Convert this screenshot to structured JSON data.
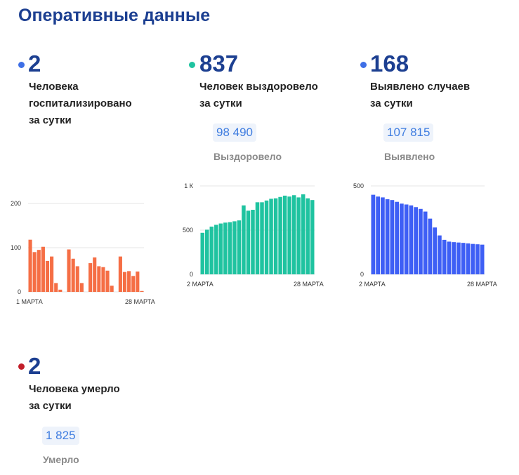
{
  "page": {
    "title": "Оперативные данные"
  },
  "stats": [
    {
      "id": "hosp",
      "value": "2",
      "label": "Человека\nгоспитализировано\nза сутки",
      "dot_color": "#3e6fe6",
      "chart_index": 0
    },
    {
      "id": "recov",
      "value": "837",
      "label": "Человек выздоровело\nза сутки",
      "dot_color": "#1fc3a0",
      "total": "98 490",
      "total_label": "Выздоровело",
      "chart_index": 1
    },
    {
      "id": "cases",
      "value": "168",
      "label": "Выявлено случаев\nза сутки",
      "dot_color": "#3e6fe6",
      "total": "107 815",
      "total_label": "Выявлено",
      "chart_index": 2
    },
    {
      "id": "death",
      "value": "2",
      "label": "Человека умерло\nза сутки",
      "dot_color": "#c21f2b",
      "total": "1 825",
      "total_label": "Умерло"
    }
  ],
  "chart_data": [
    {
      "type": "bar",
      "color": "#f56e45",
      "ylim": [
        0,
        200
      ],
      "yticks": [
        {
          "v": 0,
          "label": "0"
        },
        {
          "v": 100,
          "label": "100"
        },
        {
          "v": 200,
          "label": "200"
        }
      ],
      "xlabels": [
        "1 МАРТА",
        "28 МАРТА"
      ],
      "values": [
        118,
        90,
        95,
        102,
        70,
        80,
        20,
        5,
        0,
        96,
        75,
        58,
        20,
        0,
        65,
        78,
        58,
        56,
        48,
        14,
        0,
        80,
        45,
        47,
        36,
        46,
        2
      ]
    },
    {
      "type": "bar",
      "color": "#1fc3a0",
      "ylim": [
        0,
        1000
      ],
      "yticks": [
        {
          "v": 0,
          "label": "0"
        },
        {
          "v": 500,
          "label": "500"
        },
        {
          "v": 1000,
          "label": "1 К"
        }
      ],
      "xlabels": [
        "2 МАРТА",
        "28 МАРТА"
      ],
      "values": [
        470,
        505,
        540,
        560,
        575,
        585,
        590,
        600,
        610,
        780,
        720,
        730,
        815,
        815,
        835,
        855,
        860,
        875,
        890,
        880,
        895,
        870,
        905,
        860,
        840
      ]
    },
    {
      "type": "bar",
      "color": "#3e5ff5",
      "ylim": [
        0,
        500
      ],
      "yticks": [
        {
          "v": 0,
          "label": "0"
        },
        {
          "v": 500,
          "label": "500"
        }
      ],
      "xlabels": [
        "2 МАРТА",
        "28 МАРТА"
      ],
      "values": [
        450,
        440,
        435,
        425,
        420,
        410,
        400,
        395,
        390,
        380,
        370,
        355,
        315,
        265,
        220,
        195,
        185,
        182,
        180,
        178,
        175,
        172,
        170,
        168
      ]
    }
  ]
}
